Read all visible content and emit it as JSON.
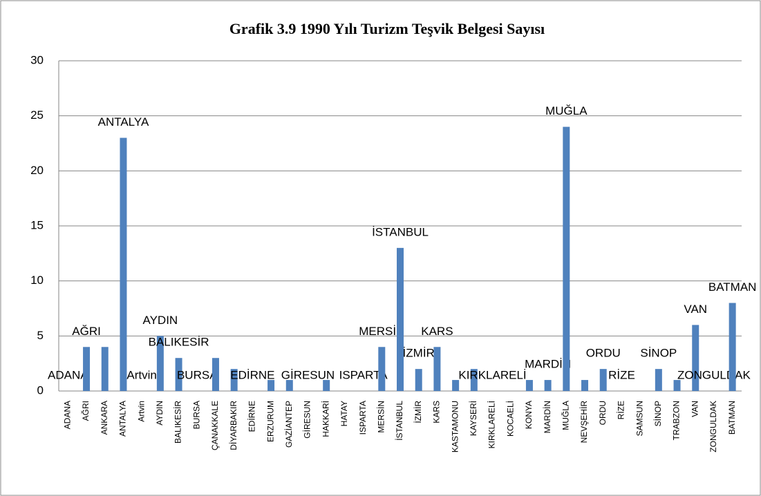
{
  "chart_data": {
    "type": "bar",
    "title": "Grafik  3.9 1990 Yılı Turizm Teşvik Belgesi Sayısı",
    "categories": [
      "ADANA",
      "AĞRI",
      "ANKARA",
      "ANTALYA",
      "Artvin",
      "AYDIN",
      "BALIKESİR",
      "BURSA",
      "ÇANAKKALE",
      "DİYARBAKIR",
      "EDİRNE",
      "ERZURUM",
      "GAZİANTEP",
      "GİRESUN",
      "HAKKARİ",
      "HATAY",
      "ISPARTA",
      "MERSİN",
      "İSTANBUL",
      "İZMİR",
      "KARS",
      "KASTAMONU",
      "KAYSERİ",
      "KIRKLARELİ",
      "KOCAELİ",
      "KONYA",
      "MARDİN",
      "MUĞLA",
      "NEVŞEHİR",
      "ORDU",
      "RİZE",
      "SAMSUN",
      "SİNOP",
      "TRABZON",
      "VAN",
      "ZONGULDAK",
      "BATMAN"
    ],
    "values": [
      0,
      4,
      4,
      23,
      0,
      5,
      3,
      0,
      3,
      2,
      0,
      1,
      1,
      0,
      1,
      0,
      0,
      4,
      13,
      2,
      4,
      1,
      2,
      0,
      0,
      1,
      1,
      24,
      1,
      2,
      0,
      0,
      2,
      1,
      6,
      0,
      8
    ],
    "data_labels": [
      "ADANA",
      "AĞRI",
      null,
      "ANTALYA",
      "Artvin",
      "AYDIN",
      "BALIKESİR",
      "BURSA",
      null,
      null,
      "EDİRNE",
      null,
      null,
      "GİRESUN",
      null,
      null,
      "ISPARTA",
      "MERSİN",
      "İSTANBUL",
      "İZMİR",
      "KARS",
      null,
      null,
      "KIRKLARELİ",
      null,
      null,
      "MARDİN",
      "MUĞLA",
      null,
      "ORDU",
      "RİZE",
      null,
      "SİNOP",
      null,
      "VAN",
      "ZONGULDAK",
      "BATMAN"
    ],
    "color": "#4f81bd",
    "ylim": [
      0,
      30
    ],
    "yticks": [
      0,
      5,
      10,
      15,
      20,
      25,
      30
    ],
    "grid": true
  }
}
